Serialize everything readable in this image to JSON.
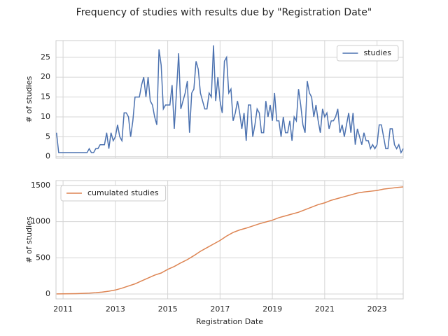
{
  "title": "Frequency of studies with results due by \"Registration Date\"",
  "chart_data": [
    {
      "type": "line",
      "ylabel": "# of studies",
      "legend": "upper right",
      "grid": true,
      "xtick_labels": false,
      "x": [
        2010.75,
        2010.833,
        2010.917,
        2011,
        2011.083,
        2011.167,
        2011.25,
        2011.333,
        2011.417,
        2011.5,
        2011.583,
        2011.667,
        2011.75,
        2011.833,
        2011.917,
        2012,
        2012.083,
        2012.167,
        2012.25,
        2012.333,
        2012.417,
        2012.5,
        2012.583,
        2012.667,
        2012.75,
        2012.833,
        2012.917,
        2013,
        2013.083,
        2013.167,
        2013.25,
        2013.333,
        2013.417,
        2013.5,
        2013.583,
        2013.667,
        2013.75,
        2013.833,
        2013.917,
        2014,
        2014.083,
        2014.167,
        2014.25,
        2014.333,
        2014.417,
        2014.5,
        2014.583,
        2014.667,
        2014.75,
        2014.833,
        2014.917,
        2015,
        2015.083,
        2015.167,
        2015.25,
        2015.333,
        2015.417,
        2015.5,
        2015.583,
        2015.667,
        2015.75,
        2015.833,
        2015.917,
        2016,
        2016.083,
        2016.167,
        2016.25,
        2016.333,
        2016.417,
        2016.5,
        2016.583,
        2016.667,
        2016.75,
        2016.833,
        2016.917,
        2017,
        2017.083,
        2017.167,
        2017.25,
        2017.333,
        2017.417,
        2017.5,
        2017.583,
        2017.667,
        2017.75,
        2017.833,
        2017.917,
        2018,
        2018.083,
        2018.167,
        2018.25,
        2018.333,
        2018.417,
        2018.5,
        2018.583,
        2018.667,
        2018.75,
        2018.833,
        2018.917,
        2019,
        2019.083,
        2019.167,
        2019.25,
        2019.333,
        2019.417,
        2019.5,
        2019.583,
        2019.667,
        2019.75,
        2019.833,
        2019.917,
        2020,
        2020.083,
        2020.167,
        2020.25,
        2020.333,
        2020.417,
        2020.5,
        2020.583,
        2020.667,
        2020.75,
        2020.833,
        2020.917,
        2021,
        2021.083,
        2021.167,
        2021.25,
        2021.333,
        2021.417,
        2021.5,
        2021.583,
        2021.667,
        2021.75,
        2021.833,
        2021.917,
        2022,
        2022.083,
        2022.167,
        2022.25,
        2022.333,
        2022.417,
        2022.5,
        2022.583,
        2022.667,
        2022.75,
        2022.833,
        2022.917,
        2023,
        2023.083,
        2023.167,
        2023.25,
        2023.333,
        2023.417,
        2023.5,
        2023.583,
        2023.667,
        2023.75,
        2023.833,
        2023.917,
        2024
      ],
      "series": [
        {
          "name": "studies",
          "color": "#4c72b0",
          "values": [
            6,
            1,
            1,
            1,
            1,
            1,
            1,
            1,
            1,
            1,
            1,
            1,
            1,
            1,
            1,
            2,
            1,
            1,
            2,
            2,
            3,
            3,
            3,
            6,
            2,
            6,
            4,
            5,
            8,
            5,
            4,
            11,
            11,
            10,
            5,
            9,
            15,
            15,
            15,
            18,
            20,
            15,
            20,
            14,
            13,
            10,
            8,
            27,
            23,
            12,
            13,
            13,
            13,
            18,
            7,
            16,
            26,
            12,
            14,
            16,
            19,
            6,
            16,
            17,
            24,
            22,
            16,
            14,
            12,
            12,
            16,
            15,
            28,
            14,
            20,
            14,
            11,
            24,
            25,
            16,
            17,
            9,
            11,
            14,
            11,
            7,
            11,
            4,
            13,
            13,
            5,
            8,
            12,
            11,
            6,
            6,
            14,
            10,
            13,
            9,
            16,
            9,
            9,
            5,
            10,
            6,
            6,
            9,
            4,
            10,
            9,
            17,
            13,
            8,
            6,
            19,
            16,
            15,
            10,
            13,
            9,
            6,
            12,
            10,
            11,
            7,
            9,
            9,
            10,
            12,
            6,
            8,
            5,
            8,
            11,
            6,
            11,
            3,
            7,
            5,
            3,
            6,
            4,
            4,
            2,
            3,
            2,
            3,
            8,
            8,
            5,
            2,
            2,
            7,
            7,
            3,
            2,
            3,
            1,
            2
          ]
        }
      ],
      "xlim": [
        2010.73,
        2024.0
      ],
      "xticks": [
        2011,
        2013,
        2015,
        2017,
        2019,
        2021,
        2023
      ],
      "ylim": [
        -0.4,
        29.2
      ],
      "yticks": [
        0,
        5,
        10,
        15,
        20,
        25
      ]
    },
    {
      "type": "line",
      "ylabel": "# of studies",
      "xlabel": "Registration Date",
      "legend": "upper left",
      "grid": true,
      "xtick_labels": true,
      "x": [
        2010.75,
        2011,
        2011.25,
        2011.5,
        2011.75,
        2012,
        2012.25,
        2012.5,
        2012.75,
        2013,
        2013.25,
        2013.5,
        2013.75,
        2014,
        2014.25,
        2014.5,
        2014.75,
        2015,
        2015.25,
        2015.5,
        2015.75,
        2016,
        2016.25,
        2016.5,
        2016.75,
        2017,
        2017.25,
        2017.5,
        2017.75,
        2018,
        2018.25,
        2018.5,
        2018.75,
        2019,
        2019.25,
        2019.5,
        2019.75,
        2020,
        2020.25,
        2020.5,
        2020.75,
        2021,
        2021.25,
        2021.5,
        2021.75,
        2022,
        2022.25,
        2022.5,
        2022.75,
        2023,
        2023.25,
        2023.5,
        2023.75,
        2024
      ],
      "series": [
        {
          "name": "cumulated studies",
          "color": "#dd8452",
          "values": [
            1,
            2,
            3,
            5,
            8,
            12,
            18,
            26,
            38,
            55,
            80,
            110,
            140,
            180,
            220,
            260,
            290,
            340,
            380,
            430,
            475,
            530,
            590,
            640,
            690,
            740,
            800,
            850,
            885,
            910,
            940,
            970,
            995,
            1020,
            1055,
            1080,
            1105,
            1130,
            1165,
            1200,
            1235,
            1260,
            1295,
            1320,
            1345,
            1370,
            1395,
            1410,
            1420,
            1430,
            1450,
            1460,
            1472,
            1480
          ]
        }
      ],
      "xlim": [
        2010.73,
        2024.0
      ],
      "xticks": [
        2011,
        2013,
        2015,
        2017,
        2019,
        2021,
        2023
      ],
      "ylim": [
        -68,
        1567
      ],
      "yticks": [
        0,
        500,
        1000,
        1500
      ]
    }
  ]
}
